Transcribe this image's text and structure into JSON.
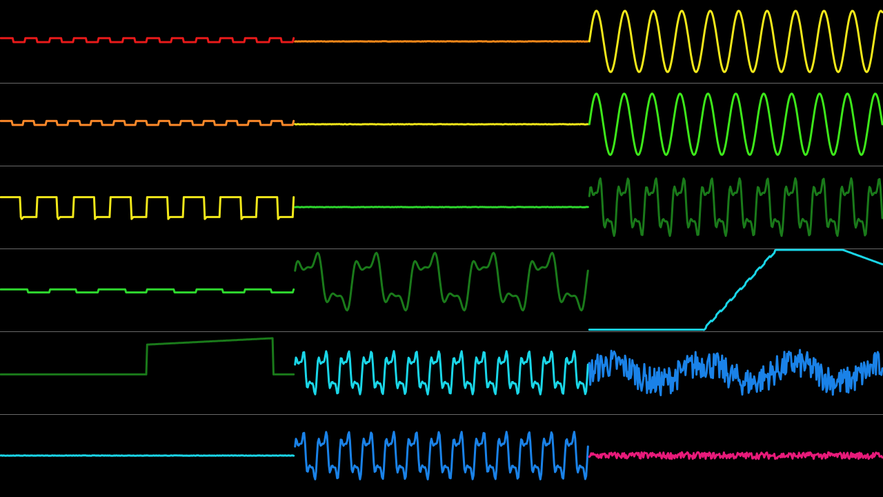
{
  "visualizer": {
    "rows": 6,
    "columns": 3,
    "channels": [
      {
        "row": 0,
        "col": 0,
        "kind": "pulse-small",
        "color": "#e81a1a",
        "level": 0.5,
        "amp": 0.04,
        "cycles": 12
      },
      {
        "row": 0,
        "col": 1,
        "kind": "flat",
        "color": "#ff8a1a",
        "level": 0.5
      },
      {
        "row": 0,
        "col": 2,
        "kind": "sine",
        "color": "#f2e81a",
        "level": 0.5,
        "amp": 0.37,
        "cycles": 10.3
      },
      {
        "row": 1,
        "col": 0,
        "kind": "pulse-small",
        "color": "#ff8a2a",
        "level": 0.5,
        "amp": 0.04,
        "cycles": 13
      },
      {
        "row": 1,
        "col": 1,
        "kind": "flat",
        "color": "#f2e81a",
        "level": 0.5
      },
      {
        "row": 1,
        "col": 2,
        "kind": "sine",
        "color": "#3de81a",
        "level": 0.5,
        "amp": 0.37,
        "cycles": 10.5
      },
      {
        "row": 2,
        "col": 0,
        "kind": "square",
        "color": "#f2e81a",
        "level": 0.5,
        "amp": 0.12,
        "cycles": 8
      },
      {
        "row": 2,
        "col": 1,
        "kind": "flat",
        "color": "#2ed82e",
        "level": 0.5
      },
      {
        "row": 2,
        "col": 2,
        "kind": "complex",
        "color": "#1a7a1a",
        "level": 0.5,
        "amp": 0.4,
        "cycles": 10.5
      },
      {
        "row": 3,
        "col": 0,
        "kind": "steps-small",
        "color": "#2ed82e",
        "level": 0.5,
        "amp": 0.03,
        "cycles": 6
      },
      {
        "row": 3,
        "col": 1,
        "kind": "complex",
        "color": "#1a7a1a",
        "level": 0.4,
        "amp": 0.4,
        "cycles": 5
      },
      {
        "row": 3,
        "col": 2,
        "kind": "ramp",
        "color": "#1ad6e8",
        "level": 0.5
      },
      {
        "row": 4,
        "col": 0,
        "kind": "steps-big",
        "color": "#1a7a1a",
        "level": 0.5
      },
      {
        "row": 4,
        "col": 1,
        "kind": "complex",
        "color": "#1ad6e8",
        "level": 0.5,
        "amp": 0.3,
        "cycles": 13
      },
      {
        "row": 4,
        "col": 2,
        "kind": "noise",
        "color": "#1a82e8",
        "level": 0.5,
        "amp": 0.32
      },
      {
        "row": 5,
        "col": 0,
        "kind": "flat",
        "color": "#1ad6e8",
        "level": 0.5
      },
      {
        "row": 5,
        "col": 1,
        "kind": "complex",
        "color": "#1a82e8",
        "level": 0.5,
        "amp": 0.33,
        "cycles": 13
      },
      {
        "row": 5,
        "col": 2,
        "kind": "noise-small",
        "color": "#e81a7a",
        "level": 0.5,
        "amp": 0.04
      }
    ]
  }
}
